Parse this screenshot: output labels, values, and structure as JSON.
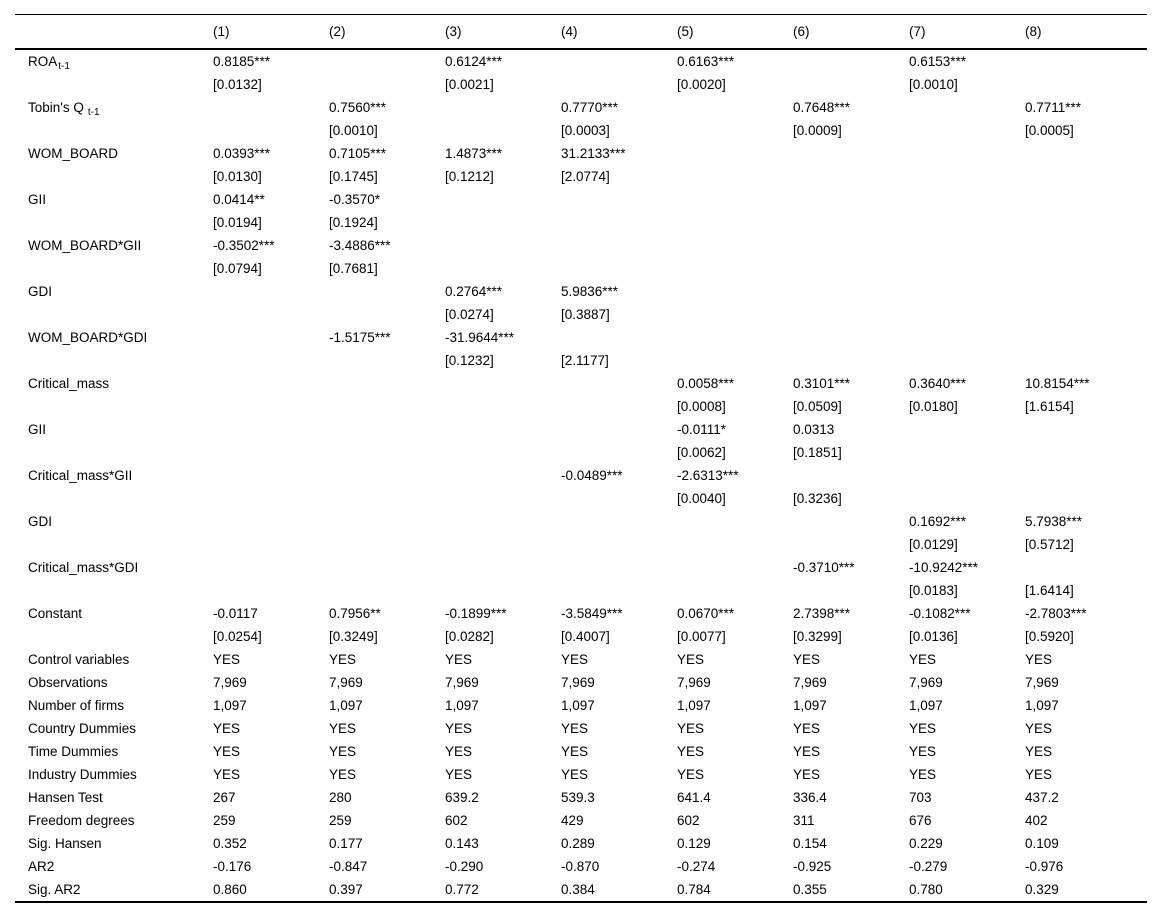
{
  "table": {
    "columns": [
      "(1)",
      "(2)",
      "(3)",
      "(4)",
      "(5)",
      "(6)",
      "(7)",
      "(8)"
    ],
    "coef_rows": [
      {
        "label": "ROA",
        "sub": "t-1",
        "coef": [
          "0.8185***",
          "",
          "0.6124***",
          "",
          "0.6163***",
          "",
          "0.6153***",
          ""
        ],
        "se": [
          "[0.0132]",
          "",
          "[0.0021]",
          "",
          "[0.0020]",
          "",
          "[0.0010]",
          ""
        ]
      },
      {
        "label": "Tobin's Q",
        "sub": "t-1",
        "coef": [
          "",
          "0.7560***",
          "",
          "0.7770***",
          "",
          "0.7648***",
          "",
          "0.7711***"
        ],
        "se": [
          "",
          "[0.0010]",
          "",
          "[0.0003]",
          "",
          "[0.0009]",
          "",
          "[0.0005]"
        ]
      },
      {
        "label": "WOM_BOARD",
        "coef": [
          "0.0393***",
          "0.7105***",
          "1.4873***",
          "31.2133***",
          "",
          "",
          "",
          ""
        ],
        "se": [
          "[0.0130]",
          "[0.1745]",
          "[0.1212]",
          "[2.0774]",
          "",
          "",
          "",
          ""
        ]
      },
      {
        "label": "GII",
        "coef": [
          "0.0414**",
          "-0.3570*",
          "",
          "",
          "",
          "",
          "",
          ""
        ],
        "se": [
          "[0.0194]",
          "[0.1924]",
          "",
          "",
          "",
          "",
          "",
          ""
        ]
      },
      {
        "label": "WOM_BOARD*GII",
        "coef": [
          "-0.3502***",
          "-3.4886***",
          "",
          "",
          "",
          "",
          "",
          ""
        ],
        "se": [
          "[0.0794]",
          "[0.7681]",
          "",
          "",
          "",
          "",
          "",
          ""
        ]
      },
      {
        "label": "GDI",
        "coef": [
          "",
          "",
          "0.2764***",
          "5.9836***",
          "",
          "",
          "",
          ""
        ],
        "se": [
          "",
          "",
          "[0.0274]",
          "[0.3887]",
          "",
          "",
          "",
          ""
        ]
      },
      {
        "label": "WOM_BOARD*GDI",
        "coef": [
          "",
          "-1.5175***",
          "-31.9644***",
          "",
          "",
          "",
          "",
          ""
        ],
        "se": [
          "",
          "",
          "[0.1232]",
          "[2.1177]",
          "",
          "",
          "",
          ""
        ]
      },
      {
        "label": "Critical_mass",
        "coef": [
          "",
          "",
          "",
          "",
          "0.0058***",
          "0.3101***",
          "0.3640***",
          "10.8154***"
        ],
        "se": [
          "",
          "",
          "",
          "",
          "[0.0008]",
          "[0.0509]",
          "[0.0180]",
          "[1.6154]"
        ]
      },
      {
        "label": "GII",
        "coef": [
          "",
          "",
          "",
          "",
          "-0.0111*",
          "0.0313",
          "",
          ""
        ],
        "se": [
          "",
          "",
          "",
          "",
          "[0.0062]",
          "[0.1851]",
          "",
          ""
        ]
      },
      {
        "label": "Critical_mass*GII",
        "coef": [
          "",
          "",
          "",
          "-0.0489***",
          "-2.6313***",
          "",
          "",
          ""
        ],
        "se": [
          "",
          "",
          "",
          "",
          "[0.0040]",
          "[0.3236]",
          "",
          ""
        ]
      },
      {
        "label": "GDI",
        "coef": [
          "",
          "",
          "",
          "",
          "",
          "",
          "0.1692***",
          "5.7938***"
        ],
        "se": [
          "",
          "",
          "",
          "",
          "",
          "",
          "[0.0129]",
          "[0.5712]"
        ]
      },
      {
        "label": "Critical_mass*GDI",
        "coef": [
          "",
          "",
          "",
          "",
          "",
          "-0.3710***",
          "-10.9242***",
          ""
        ],
        "se": [
          "",
          "",
          "",
          "",
          "",
          "",
          "[0.0183]",
          "[1.6414]"
        ]
      },
      {
        "label": "Constant",
        "coef": [
          "-0.0117",
          "0.7956**",
          "-0.1899***",
          "-3.5849***",
          "0.0670***",
          "2.7398***",
          "-0.1082***",
          "-2.7803***"
        ],
        "se": [
          "[0.0254]",
          "[0.3249]",
          "[0.0282]",
          "[0.4007]",
          "[0.0077]",
          "[0.3299]",
          "[0.0136]",
          "[0.5920]"
        ]
      }
    ],
    "single_rows": [
      {
        "label": "Control variables",
        "values": [
          "YES",
          "YES",
          "YES",
          "YES",
          "YES",
          "YES",
          "YES",
          "YES"
        ]
      },
      {
        "label": "Observations",
        "values": [
          "7,969",
          "7,969",
          "7,969",
          "7,969",
          "7,969",
          "7,969",
          "7,969",
          "7,969"
        ]
      },
      {
        "label": "Number of firms",
        "values": [
          "1,097",
          "1,097",
          "1,097",
          "1,097",
          "1,097",
          "1,097",
          "1,097",
          "1,097"
        ]
      },
      {
        "label": "Country Dummies",
        "values": [
          "YES",
          "YES",
          "YES",
          "YES",
          "YES",
          "YES",
          "YES",
          "YES"
        ]
      },
      {
        "label": "Time Dummies",
        "values": [
          "YES",
          "YES",
          "YES",
          "YES",
          "YES",
          "YES",
          "YES",
          "YES"
        ]
      },
      {
        "label": "Industry Dummies",
        "values": [
          "YES",
          "YES",
          "YES",
          "YES",
          "YES",
          "YES",
          "YES",
          "YES"
        ]
      },
      {
        "label": "Hansen Test",
        "values": [
          "267",
          "280",
          "639.2",
          "539.3",
          "641.4",
          "336.4",
          "703",
          "437.2"
        ]
      },
      {
        "label": "Freedom degrees",
        "values": [
          "259",
          "259",
          "602",
          "429",
          "602",
          "311",
          "676",
          "402"
        ]
      },
      {
        "label": "Sig. Hansen",
        "values": [
          "0.352",
          "0.177",
          "0.143",
          "0.289",
          "0.129",
          "0.154",
          "0.229",
          "0.109"
        ]
      },
      {
        "label": "AR2",
        "values": [
          "-0.176",
          "-0.847",
          "-0.290",
          "-0.870",
          "-0.274",
          "-0.925",
          "-0.279",
          "-0.976"
        ]
      },
      {
        "label": "Sig. AR2",
        "values": [
          "0.860",
          "0.397",
          "0.772",
          "0.384",
          "0.784",
          "0.355",
          "0.780",
          "0.329"
        ]
      }
    ]
  }
}
